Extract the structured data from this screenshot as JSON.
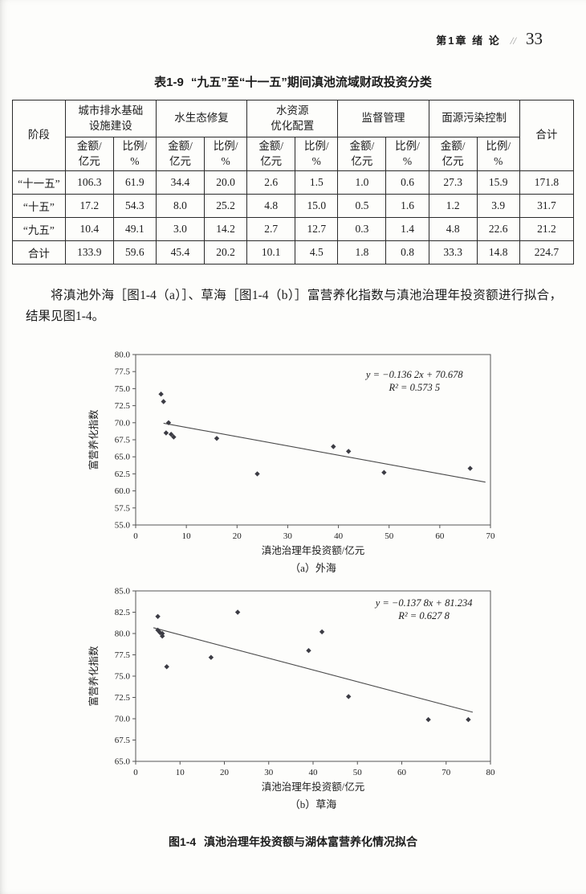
{
  "header": {
    "chapter": "第1章 绪 论",
    "separator": "//",
    "page_number": "33"
  },
  "table": {
    "caption_label": "表1-9",
    "caption_text": "“九五”至“十一五”期间滇池流域财政投资分类",
    "stage_header": "阶段",
    "total_header": "合计",
    "amount_header": "金额/\n亿元",
    "ratio_header": "比例/\n%",
    "groups": [
      "城市排水基础\n设施建设",
      "水生态修复",
      "水资源\n优化配置",
      "监督管理",
      "面源污染控制"
    ],
    "rows": [
      {
        "stage": "“十一五”",
        "values": [
          "106.3",
          "61.9",
          "34.4",
          "20.0",
          "2.6",
          "1.5",
          "1.0",
          "0.6",
          "27.3",
          "15.9",
          "171.8"
        ]
      },
      {
        "stage": "“十五”",
        "values": [
          "17.2",
          "54.3",
          "8.0",
          "25.2",
          "4.8",
          "15.0",
          "0.5",
          "1.6",
          "1.2",
          "3.9",
          "31.7"
        ]
      },
      {
        "stage": "“九五”",
        "values": [
          "10.4",
          "49.1",
          "3.0",
          "14.2",
          "2.7",
          "12.7",
          "0.3",
          "1.4",
          "4.8",
          "22.6",
          "21.2"
        ]
      },
      {
        "stage": "合计",
        "values": [
          "133.9",
          "59.6",
          "45.4",
          "20.2",
          "10.1",
          "4.5",
          "1.8",
          "0.8",
          "33.3",
          "14.8",
          "224.7"
        ]
      }
    ]
  },
  "paragraph": "将滇池外海［图1-4（a）］、草海［图1-4（b）］富营养化指数与滇池治理年投资额进行拟合，结果见图1-4。",
  "chart_data": [
    {
      "type": "scatter",
      "title": "（a）外海",
      "xlabel": "滇池治理年投资额/亿元",
      "ylabel": "富营养化指数",
      "xlim": [
        0,
        70
      ],
      "xtick_step": 10,
      "ylim": [
        55.0,
        80.0
      ],
      "ytick_step": 2.5,
      "grid": false,
      "equation": "y = −0.136 2x + 70.678",
      "r_squared": "R² = 0.573 5",
      "trend": {
        "slope": -0.1362,
        "intercept": 70.678,
        "x_start": 5.5,
        "x_end": 69
      },
      "annotation_anchor": {
        "x": 55,
        "y": 76.6
      },
      "points": [
        [
          5,
          74.2
        ],
        [
          5.5,
          73.1
        ],
        [
          6.5,
          70.0
        ],
        [
          6,
          68.5
        ],
        [
          7,
          68.3
        ],
        [
          7.5,
          67.9
        ],
        [
          16,
          67.7
        ],
        [
          24,
          62.5
        ],
        [
          39,
          66.5
        ],
        [
          42,
          65.8
        ],
        [
          49,
          62.7
        ],
        [
          66,
          63.3
        ]
      ]
    },
    {
      "type": "scatter",
      "title": "（b）草海",
      "xlabel": "滇池治理年投资额/亿元",
      "ylabel": "富营养化指数",
      "xlim": [
        0,
        80
      ],
      "xtick_step": 10,
      "ylim": [
        65.0,
        85.0
      ],
      "ytick_step": 2.5,
      "grid": false,
      "equation": "y = −0.137 8x + 81.234",
      "r_squared": "R² = 0.627 8",
      "trend": {
        "slope": -0.1378,
        "intercept": 81.234,
        "x_start": 4,
        "x_end": 76
      },
      "annotation_anchor": {
        "x": 65,
        "y": 83.2
      },
      "points": [
        [
          5,
          82.0
        ],
        [
          5,
          80.4
        ],
        [
          5.5,
          80.1
        ],
        [
          6,
          80.0
        ],
        [
          6,
          79.7
        ],
        [
          7,
          76.1
        ],
        [
          17,
          77.2
        ],
        [
          23,
          82.5
        ],
        [
          39,
          78.0
        ],
        [
          42,
          80.2
        ],
        [
          48,
          72.6
        ],
        [
          66,
          69.9
        ],
        [
          75,
          69.9
        ]
      ]
    }
  ],
  "figure": {
    "caption_label": "图1-4",
    "caption_text": "滇池治理年投资额与湖体富营养化情况拟合"
  }
}
